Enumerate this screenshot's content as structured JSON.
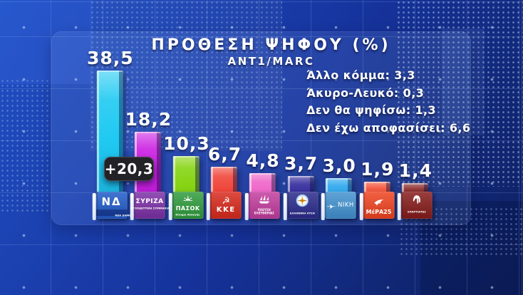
{
  "header": {
    "title": "ΠΡΟΘΕΣΗ ΨΗΦΟΥ (%)",
    "source": "ANT1/MARC"
  },
  "lead_gap_badge": "+20,3",
  "stats": {
    "items": [
      {
        "label": "Άλλο κόμμα:",
        "value": "3,3"
      },
      {
        "label": "Άκυρο-Λευκό:",
        "value": "0,3"
      },
      {
        "label": "Δεν θα ψηφίσω:",
        "value": "1,3"
      },
      {
        "label": "Δεν έχω αποφασίσει:",
        "value": "6,6"
      }
    ]
  },
  "chart_data": {
    "type": "bar",
    "title": "ΠΡΟΘΕΣΗ ΨΗΦΟΥ (%)",
    "subtitle": "ANT1/MARC",
    "categories": [
      "ΝΕΑ ΔΗΜΟΚΡΑΤΙΑ",
      "ΣΥΡΙΖΑ",
      "ΠΑΣΟΚ",
      "ΚΚΕ",
      "ΠΛΕΥΣΗ ΕΛΕΥΘΕΡΙΑΣ",
      "ΕΛΛΗΝΙΚΗ ΛΥΣΗ",
      "ΝΙΚΗ",
      "ΜέΡΑ25",
      "ΣΠΑΡΤΙΑΤΕΣ"
    ],
    "values": [
      38.5,
      18.2,
      10.3,
      6.7,
      4.8,
      3.7,
      3.0,
      1.9,
      1.4
    ],
    "value_labels": [
      "38,5",
      "18,2",
      "10,3",
      "6,7",
      "4,8",
      "3,7",
      "3,0",
      "1,9",
      "1,4"
    ],
    "bar_colors": [
      "#1fc9f2",
      "#cb1fe2",
      "#86d414",
      "#f0453a",
      "#ef64c8",
      "#322a9c",
      "#2aa5ec",
      "#f24a30",
      "#841d1d"
    ],
    "annotations": [
      {
        "text": "+20,3",
        "meaning": "lead of 1st party over 2nd"
      }
    ],
    "legend": "none",
    "grid": "off",
    "ylim": [
      0,
      40
    ]
  },
  "parties": [
    {
      "name": "ΝΕΑ ΔΗΜΟΚΡΑΤΙΑ",
      "logo": {
        "bg": "#1f5ac8",
        "monogram": "ΝΔ",
        "caption": "ΝΕΑ ΔΗΜΟΚΡΑΤΙΑ"
      }
    },
    {
      "name": "ΣΥΡΙΖΑ",
      "logo": {
        "bg": "#7c2fa6",
        "title": "ΣΥΡΙΖΑ",
        "caption": "ΠΡΟΟΔΕΥΤΙΚΗ ΣΥΜΜΑΧΙΑ"
      }
    },
    {
      "name": "ΠΑΣΟΚ",
      "logo": {
        "bg": "#2f9b3c",
        "title": "ΠΑΣΟΚ",
        "caption": "Κίνημα Αλλαγής",
        "icon": "sun-icon"
      }
    },
    {
      "name": "ΚΚΕ",
      "logo": {
        "bg": "#d8291c",
        "title": "ΚΚΕ",
        "glyph": "☭",
        "icon": "hammer-sickle-icon"
      }
    },
    {
      "name": "ΠΛΕΥΣΗ ΕΛΕΥΘΕΡΙΑΣ",
      "logo": {
        "bg": "#c23c9e",
        "caption": "ΠΛΕΥΣΗ ΕΛΕΥΘΕΡΙΑΣ",
        "icon": "ship-icon"
      }
    },
    {
      "name": "ΕΛΛΗΝΙΚΗ ΛΥΣΗ",
      "logo": {
        "bg": "#2a2a8c",
        "caption": "ΕΛΛΗΝΙΚΗ ΛΥΣΗ",
        "icon": "compass-icon"
      }
    },
    {
      "name": "ΝΙΚΗ",
      "logo": {
        "bg": "#4192d0",
        "title": "ΝΙΚΗ",
        "icon": "plane-icon"
      }
    },
    {
      "name": "ΜέΡΑ25",
      "logo": {
        "bg": "#ef421f",
        "title": "ΜέΡΑ25",
        "icon": "bird-icon"
      }
    },
    {
      "name": "ΣΠΑΡΤΙΑΤΕΣ",
      "logo": {
        "bg": "#851a1a",
        "caption": "ΣΠΑΡΤΙΑΤΕΣ",
        "icon": "helmet-icon"
      }
    }
  ]
}
